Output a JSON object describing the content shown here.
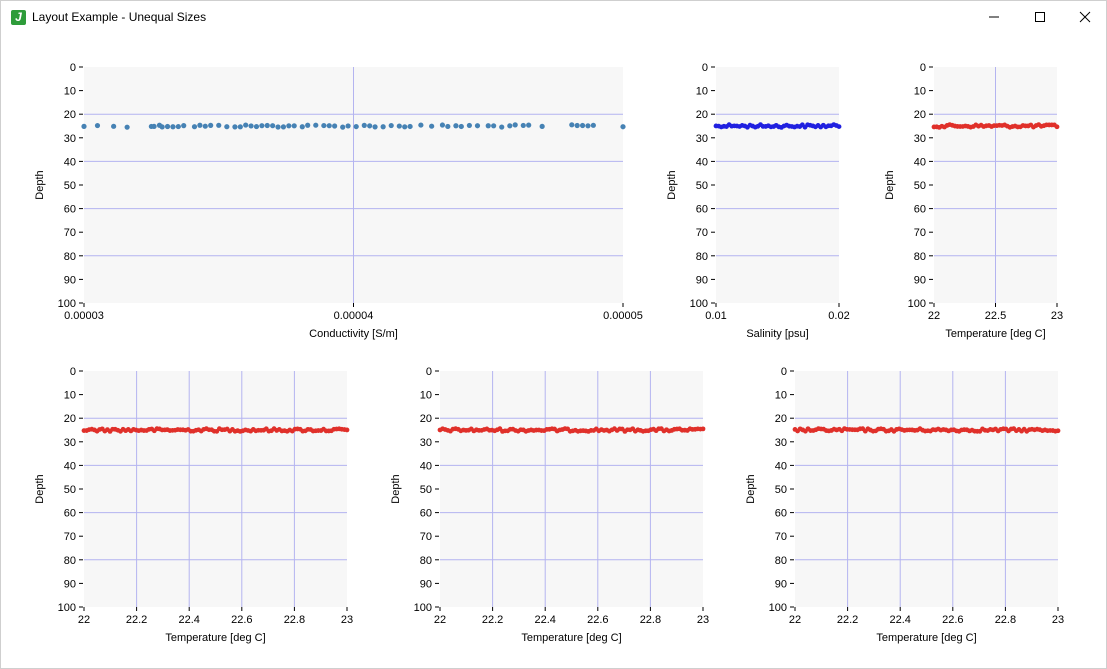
{
  "window": {
    "title": "Layout Example - Unequal Sizes",
    "icon": "java-app-icon"
  },
  "colors": {
    "plot_background": "#f7f7f7",
    "grid": "#b4b4f0",
    "blue_series": "#4682b4",
    "salinity_series": "#2020e0",
    "temperature_series": "#e0302a"
  },
  "chart_data": [
    {
      "type": "scatter",
      "name": "conductivity",
      "xlabel": "Conductivity [S/m]",
      "ylabel": "Depth",
      "xlim": [
        3e-05,
        5e-05
      ],
      "ylim": [
        0,
        100
      ],
      "y_inverted": true,
      "xticks": [
        3e-05,
        4e-05,
        5e-05
      ],
      "xtick_labels": [
        "0.00003",
        "0.00004",
        "0.00005"
      ],
      "yticks": [
        0,
        10,
        20,
        30,
        40,
        50,
        60,
        70,
        80,
        90,
        100
      ],
      "grid": true,
      "color": "#4682b4",
      "depth": 25,
      "x": [
        3e-05,
        3.05e-05,
        3.11e-05,
        3.16e-05,
        3.25e-05,
        3.26e-05,
        3.28e-05,
        3.29e-05,
        3.31e-05,
        3.33e-05,
        3.35e-05,
        3.37e-05,
        3.41e-05,
        3.43e-05,
        3.45e-05,
        3.47e-05,
        3.5e-05,
        3.53e-05,
        3.56e-05,
        3.58e-05,
        3.6e-05,
        3.62e-05,
        3.64e-05,
        3.66e-05,
        3.68e-05,
        3.7e-05,
        3.72e-05,
        3.74e-05,
        3.76e-05,
        3.78e-05,
        3.81e-05,
        3.83e-05,
        3.86e-05,
        3.89e-05,
        3.91e-05,
        3.93e-05,
        3.96e-05,
        3.98e-05,
        4.01e-05,
        4.04e-05,
        4.06e-05,
        4.08e-05,
        4.11e-05,
        4.14e-05,
        4.17e-05,
        4.19e-05,
        4.21e-05,
        4.25e-05,
        4.29e-05,
        4.33e-05,
        4.35e-05,
        4.38e-05,
        4.4e-05,
        4.43e-05,
        4.46e-05,
        4.5e-05,
        4.52e-05,
        4.55e-05,
        4.58e-05,
        4.6e-05,
        4.63e-05,
        4.65e-05,
        4.7e-05,
        4.81e-05,
        4.83e-05,
        4.85e-05,
        4.87e-05,
        4.89e-05,
        5e-05
      ]
    },
    {
      "type": "scatter",
      "name": "salinity",
      "xlabel": "Salinity [psu]",
      "ylabel": "Depth",
      "xlim": [
        0.01,
        0.02
      ],
      "ylim": [
        0,
        100
      ],
      "y_inverted": true,
      "xticks": [
        0.01,
        0.02
      ],
      "xtick_labels": [
        "0.01",
        "0.02"
      ],
      "yticks": [
        0,
        10,
        20,
        30,
        40,
        50,
        60,
        70,
        80,
        90,
        100
      ],
      "grid": true,
      "color": "#2020e0",
      "depth": 25,
      "dense": true
    },
    {
      "type": "scatter",
      "name": "temperature-top",
      "xlabel": "Temperature [deg C]",
      "ylabel": "Depth",
      "xlim": [
        22,
        23
      ],
      "ylim": [
        0,
        100
      ],
      "y_inverted": true,
      "xticks": [
        22,
        22.5,
        23
      ],
      "xtick_labels": [
        "22",
        "22.5",
        "23"
      ],
      "yticks": [
        0,
        10,
        20,
        30,
        40,
        50,
        60,
        70,
        80,
        90,
        100
      ],
      "grid": true,
      "color": "#e0302a",
      "depth": 25,
      "dense": true
    },
    {
      "type": "scatter",
      "name": "temperature-bottom-left",
      "xlabel": "Temperature [deg C]",
      "ylabel": "Depth",
      "xlim": [
        22,
        23
      ],
      "ylim": [
        0,
        100
      ],
      "y_inverted": true,
      "xticks": [
        22,
        22.2,
        22.4,
        22.6,
        22.8,
        23
      ],
      "xtick_labels": [
        "22",
        "22.2",
        "22.4",
        "22.6",
        "22.8",
        "23"
      ],
      "yticks": [
        0,
        10,
        20,
        30,
        40,
        50,
        60,
        70,
        80,
        90,
        100
      ],
      "grid": true,
      "color": "#e0302a",
      "depth": 25,
      "dense": true
    },
    {
      "type": "scatter",
      "name": "temperature-bottom-middle",
      "xlabel": "Temperature [deg C]",
      "ylabel": "Depth",
      "xlim": [
        22,
        23
      ],
      "ylim": [
        0,
        100
      ],
      "y_inverted": true,
      "xticks": [
        22,
        22.2,
        22.4,
        22.6,
        22.8,
        23
      ],
      "xtick_labels": [
        "22",
        "22.2",
        "22.4",
        "22.6",
        "22.8",
        "23"
      ],
      "yticks": [
        0,
        10,
        20,
        30,
        40,
        50,
        60,
        70,
        80,
        90,
        100
      ],
      "grid": true,
      "color": "#e0302a",
      "depth": 25,
      "dense": true
    },
    {
      "type": "scatter",
      "name": "temperature-bottom-right",
      "xlabel": "Temperature [deg C]",
      "ylabel": "Depth",
      "xlim": [
        22,
        23
      ],
      "ylim": [
        0,
        100
      ],
      "y_inverted": true,
      "xticks": [
        22,
        22.2,
        22.4,
        22.6,
        22.8,
        23
      ],
      "xtick_labels": [
        "22",
        "22.2",
        "22.4",
        "22.6",
        "22.8",
        "23"
      ],
      "yticks": [
        0,
        10,
        20,
        30,
        40,
        50,
        60,
        70,
        80,
        90,
        100
      ],
      "grid": true,
      "color": "#e0302a",
      "depth": 25,
      "dense": true
    }
  ]
}
